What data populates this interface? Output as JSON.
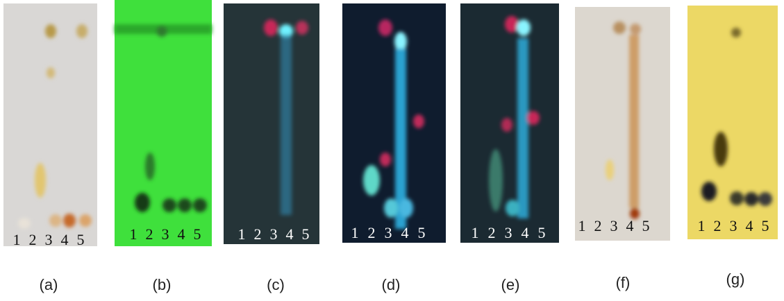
{
  "panels": [
    {
      "label": "(a)",
      "lanes": [
        "1",
        "2",
        "3",
        "4",
        "5"
      ]
    },
    {
      "label": "(b)",
      "lanes": [
        "1",
        "2",
        "3",
        "4",
        "5"
      ]
    },
    {
      "label": "(c)",
      "lanes": [
        "1",
        "2",
        "3",
        "4",
        "5"
      ]
    },
    {
      "label": "(d)",
      "lanes": [
        "1",
        "2",
        "3",
        "4",
        "5"
      ]
    },
    {
      "label": "(e)",
      "lanes": [
        "1",
        "2",
        "3",
        "4",
        "5"
      ]
    },
    {
      "label": "(f)",
      "lanes": [
        "1",
        "2",
        "3",
        "4",
        "5"
      ]
    },
    {
      "label": "(g)",
      "lanes": [
        "1",
        "2",
        "3",
        "4",
        "5"
      ]
    }
  ]
}
